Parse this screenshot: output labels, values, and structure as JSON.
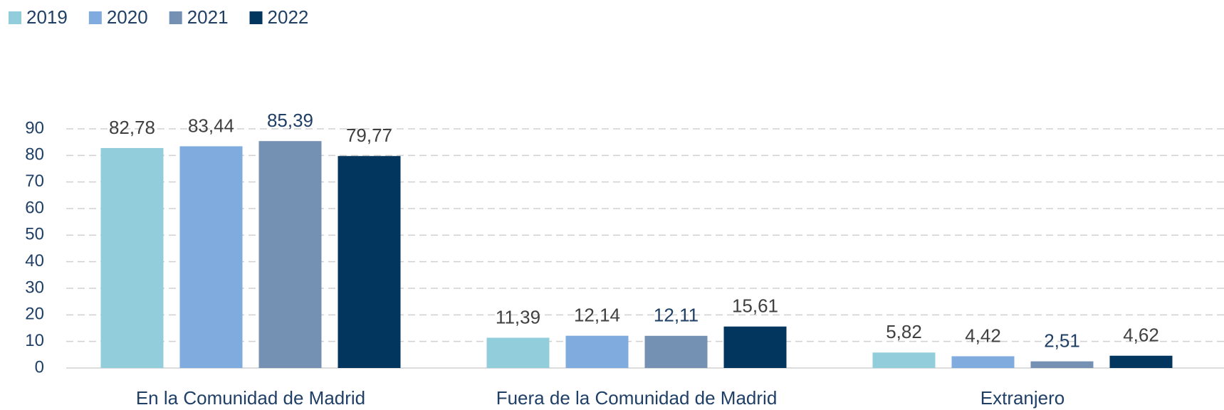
{
  "chart_data": {
    "type": "bar",
    "categories": [
      "En la Comunidad de Madrid",
      "Fuera de la Comunidad de Madrid",
      "Extranjero"
    ],
    "series": [
      {
        "name": "2019",
        "color": "#92cddc",
        "label_color": "#404040",
        "values": [
          82.78,
          11.39,
          5.82
        ],
        "value_labels": [
          "82,78",
          "11,39",
          "5,82"
        ]
      },
      {
        "name": "2020",
        "color": "#7fabdf",
        "label_color": "#404040",
        "values": [
          83.44,
          12.14,
          4.42
        ],
        "value_labels": [
          "83,44",
          "12,14",
          "4,42"
        ]
      },
      {
        "name": "2021",
        "color": "#7490b3",
        "label_color": "#1f3f66",
        "values": [
          85.39,
          12.11,
          2.51
        ],
        "value_labels": [
          "85,39",
          "12,11",
          "2,51"
        ]
      },
      {
        "name": "2022",
        "color": "#03365f",
        "label_color": "#404040",
        "values": [
          79.77,
          15.61,
          4.62
        ],
        "value_labels": [
          "79,77",
          "15,61",
          "4,62"
        ]
      }
    ],
    "ylim": [
      0,
      90
    ],
    "yticks": [
      0,
      10,
      20,
      30,
      40,
      50,
      60,
      70,
      80,
      90
    ],
    "grid": true,
    "legend": "top-left"
  }
}
